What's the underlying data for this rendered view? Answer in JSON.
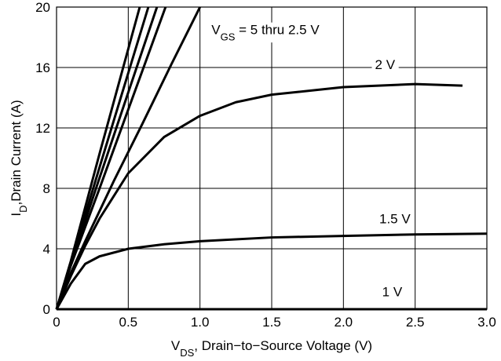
{
  "chart_data": {
    "type": "line",
    "annotation": {
      "main": "V",
      "sub": "GS",
      "rest": " = 5 thru 2.5 V"
    },
    "xlabel": {
      "main": "V",
      "sub": "DS",
      "rest": ", Drain−to−Source Voltage (V)"
    },
    "ylabel": {
      "main": "I",
      "sub": "D",
      "rest": ",Drain Current (A)"
    },
    "xlim": [
      0,
      3.0
    ],
    "ylim": [
      0,
      20
    ],
    "xticks": [
      0,
      0.5,
      {
        "value": 1,
        "label": "1.0"
      },
      1.5,
      {
        "value": 2,
        "label": "2.0"
      },
      2.5,
      {
        "value": 3,
        "label": "3.0"
      }
    ],
    "yticks": [
      0,
      4,
      8,
      12,
      16,
      20
    ],
    "grid": true,
    "series": [
      {
        "color": "#000000",
        "x": [
          0,
          0.1,
          0.3,
          0.58
        ],
        "values": [
          0,
          3.2,
          10.3,
          20
        ]
      },
      {
        "color": "#000000",
        "x": [
          0,
          0.1,
          0.3,
          0.64
        ],
        "values": [
          0,
          3.1,
          9.4,
          20
        ]
      },
      {
        "color": "#000000",
        "x": [
          0,
          0.1,
          0.3,
          0.7
        ],
        "values": [
          0,
          3.0,
          8.7,
          20
        ]
      },
      {
        "color": "#000000",
        "x": [
          0,
          0.1,
          0.3,
          0.76
        ],
        "values": [
          0,
          2.9,
          8.0,
          20
        ]
      },
      {
        "color": "#000000",
        "x": [
          0,
          0.1,
          0.2,
          0.4,
          0.6,
          0.8,
          1.0
        ],
        "values": [
          0,
          2.4,
          4.5,
          8.5,
          12.3,
          16.2,
          20
        ]
      },
      {
        "name": "2 V",
        "color": "#000000",
        "x": [
          0,
          0.1,
          0.2,
          0.3,
          0.5,
          0.75,
          1.0,
          1.25,
          1.5,
          2.0,
          2.5,
          2.83
        ],
        "values": [
          0,
          2.2,
          4.2,
          6.0,
          9.0,
          11.4,
          12.8,
          13.7,
          14.2,
          14.7,
          14.9,
          14.8
        ]
      },
      {
        "name": "1.5 V",
        "color": "#000000",
        "x": [
          0,
          0.1,
          0.2,
          0.3,
          0.5,
          0.75,
          1.0,
          1.5,
          2.0,
          2.5,
          3.0
        ],
        "values": [
          0,
          1.7,
          3.0,
          3.5,
          4.0,
          4.3,
          4.5,
          4.75,
          4.85,
          4.95,
          5.0
        ]
      },
      {
        "name": "1 V",
        "color": "#000000",
        "x": [
          0,
          3.0
        ],
        "values": [
          0,
          0
        ]
      }
    ]
  }
}
